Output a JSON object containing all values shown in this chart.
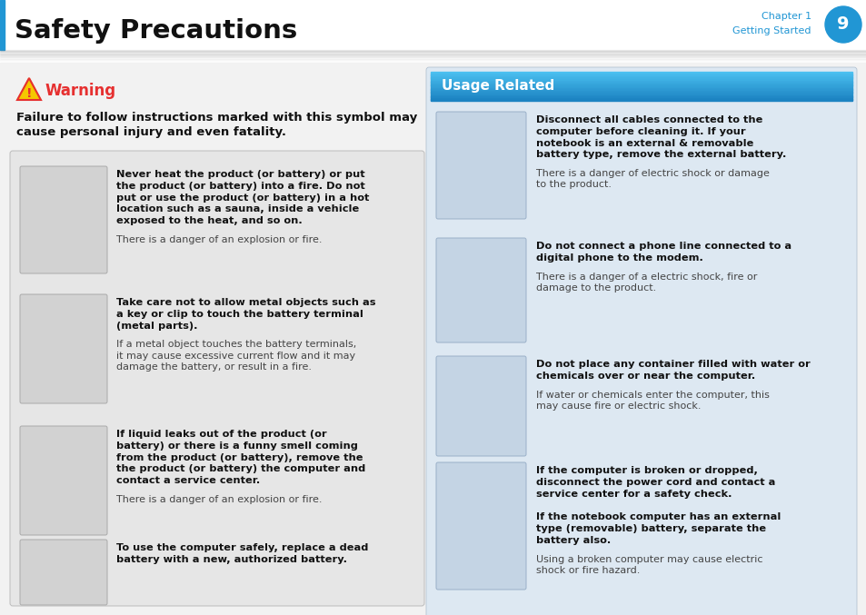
{
  "title": "Safety Precautions",
  "chapter_line1": "Chapter 1",
  "chapter_line2": "Getting Started",
  "page_number": "9",
  "body_bg": "#f2f2f2",
  "warning_title": "Warning",
  "warning_color": "#e63030",
  "warning_intro_line1": "Failure to follow instructions marked with this symbol may",
  "warning_intro_line2": "cause personal injury and even fatality.",
  "usage_related_header": "Usage Related",
  "usage_header_bg_top": "#3ab0e8",
  "usage_header_bg_bot": "#2080c0",
  "usage_header_text_color": "#ffffff",
  "left_box_bg": "#e6e6e6",
  "left_box_border": "#c8c8c8",
  "right_box_bg": "#dce8f2",
  "img_bg": "#d4d4d4",
  "img_bg_right": "#c8d8ea",
  "left_items": [
    {
      "bold": "Never heat the product (or battery) or put\nthe product (or battery) into a fire. Do not\nput or use the product (or battery) in a hot\nlocation such as a sauna, inside a vehicle\nexposed to the heat, and so on.",
      "normal": "There is a danger of an explosion or fire."
    },
    {
      "bold": "Take care not to allow metal objects such as\na key or clip to touch the battery terminal\n(metal parts).",
      "normal": "If a metal object touches the battery terminals,\nit may cause excessive current flow and it may\ndamage the battery, or result in a fire."
    },
    {
      "bold": "If liquid leaks out of the product (or\nbattery) or there is a funny smell coming\nfrom the product (or battery), remove the\nthe product (or battery) the computer and\ncontact a service center.",
      "normal": "There is a danger of an explosion or fire."
    },
    {
      "bold": "To use the computer safely, replace a dead\nbattery with a new, authorized battery.",
      "normal": ""
    }
  ],
  "right_items": [
    {
      "bold": "Disconnect all cables connected to the\ncomputer before cleaning it. If your\nnotebook is an external & removable\nbattery type, remove the external battery.",
      "normal": "There is a danger of electric shock or damage\nto the product."
    },
    {
      "bold": "Do not connect a phone line connected to a\ndigital phone to the modem.",
      "normal": "There is a danger of a electric shock, fire or\ndamage to the product."
    },
    {
      "bold": "Do not place any container filled with water or\nchemicals over or near the computer.",
      "normal": "If water or chemicals enter the computer, this\nmay cause fire or electric shock."
    },
    {
      "bold": "If the computer is broken or dropped,\ndisconnect the power cord and contact a\nservice center for a safety check.\n\nIf the notebook computer has an external\ntype (removable) battery, separate the\nbattery also.",
      "normal": "Using a broken computer may cause electric\nshock or fire hazard."
    }
  ]
}
